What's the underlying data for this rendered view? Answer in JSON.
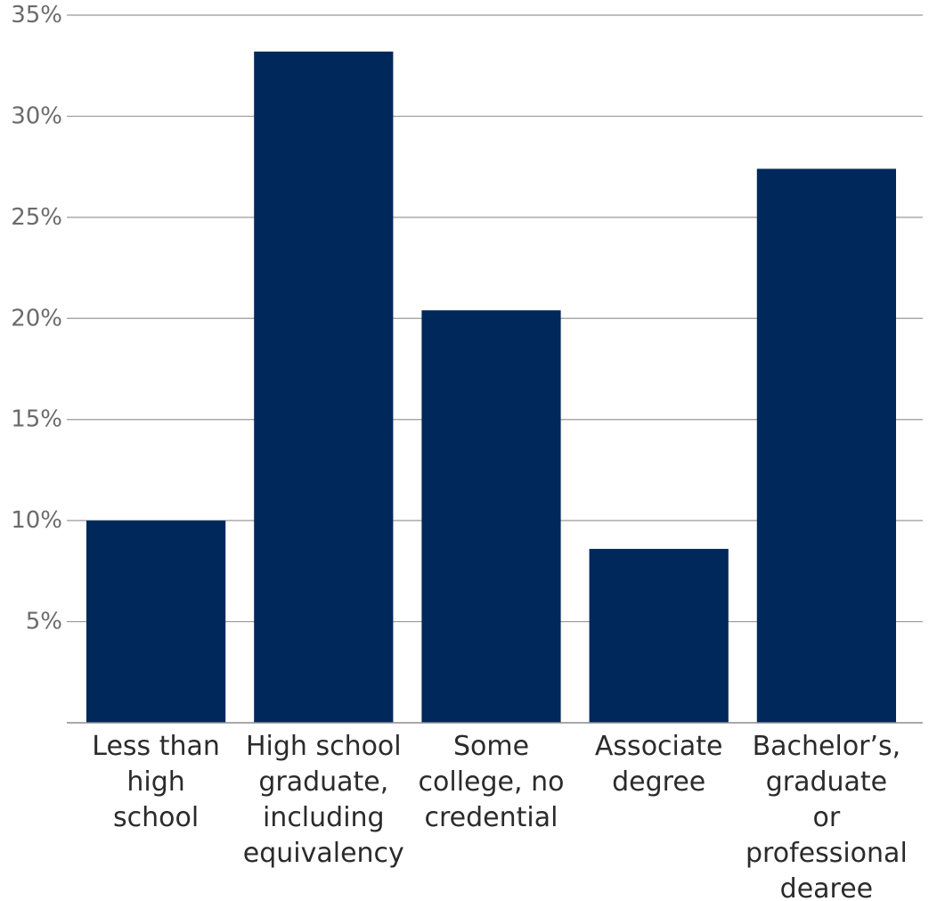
{
  "chart_data": {
    "type": "bar",
    "categories": [
      "Less than high school",
      "High school graduate, including equivalency",
      "Some college, no credential",
      "Associate degree",
      "Bachelor’s, graduate or professional dearee"
    ],
    "category_label_lines": [
      [
        "Less than",
        "high",
        "school"
      ],
      [
        "High school",
        "graduate,",
        "including",
        "equivalency"
      ],
      [
        "Some",
        "college, no",
        "credential"
      ],
      [
        "Associate",
        "degree"
      ],
      [
        "Bachelor’s,",
        "graduate",
        "or",
        "professional",
        "dearee"
      ]
    ],
    "values": [
      10.0,
      33.2,
      20.4,
      8.6,
      27.4
    ],
    "yticks": [
      5,
      10,
      15,
      20,
      25,
      30,
      35
    ],
    "ytick_labels": [
      "5%",
      "10%",
      "15%",
      "20%",
      "25%",
      "30%",
      "35%"
    ],
    "ylim": [
      0,
      35
    ],
    "grid": true,
    "bar_color": "#00285a",
    "title": "",
    "xlabel": "",
    "ylabel": ""
  }
}
